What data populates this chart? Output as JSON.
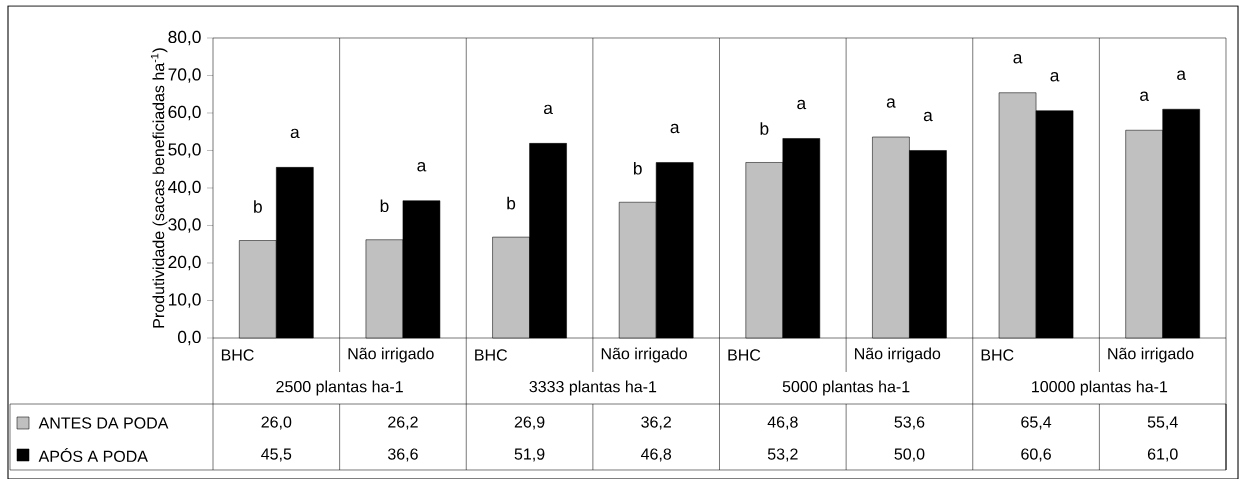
{
  "chart_data": {
    "type": "bar",
    "ylabel": "Produtividade (sacas beneficiadas ha$^{-1}$)",
    "categories": [
      "BHC",
      "Não irrigado",
      "BHC",
      "Não irrigado",
      "BHC",
      "Não irrigado",
      "BHC",
      "Não irrigado"
    ],
    "series": [
      {
        "name": "ANTES DA PODA",
        "color": "#c0c0c0",
        "values": [
          26.0,
          26.2,
          26.9,
          36.2,
          46.8,
          53.6,
          65.4,
          55.4
        ],
        "value_labels": [
          "26,0",
          "26,2",
          "26,9",
          "36,2",
          "46,8",
          "53,6",
          "65,4",
          "55,4"
        ]
      },
      {
        "name": "APÓS A PODA",
        "color": "#000000",
        "values": [
          45.5,
          36.6,
          51.9,
          46.8,
          53.2,
          50.0,
          60.6,
          61.0
        ],
        "value_labels": [
          "45,5",
          "36,6",
          "51,9",
          "46,8",
          "53,2",
          "50,0",
          "60,6",
          "61,0"
        ]
      }
    ],
    "annotations": [
      "2500 plantas ha-1",
      "3333 plantas ha-1",
      "5000 plantas ha-1",
      "10000 plantas ha-1",
      {
        "text": "b",
        "y": 26.0
      },
      {
        "text": "a",
        "y": 45.5
      },
      {
        "text": "b",
        "y": 26.2
      },
      {
        "text": "a",
        "y": 36.6
      },
      {
        "text": "b",
        "y": 26.9
      },
      {
        "text": "a",
        "y": 51.9
      },
      {
        "text": "b",
        "y": 36.2
      },
      {
        "text": "a",
        "y": 46.8
      },
      {
        "text": "b",
        "y": 46.8
      },
      {
        "text": "a",
        "y": 53.2
      },
      {
        "text": "a",
        "y": 53.6
      },
      {
        "text": "a",
        "y": 50.0
      },
      {
        "text": "a",
        "y": 65.4
      },
      {
        "text": "a",
        "y": 60.6
      },
      {
        "text": "a",
        "y": 55.4
      },
      {
        "text": "a",
        "y": 61.0
      }
    ],
    "ylim": [
      0,
      80
    ],
    "yticks": [
      {
        "value": 0,
        "label": "0,0"
      },
      {
        "value": 10,
        "label": "10,0"
      },
      {
        "value": 20,
        "label": "20,0"
      },
      {
        "value": 30,
        "label": "30,0"
      },
      {
        "value": 40,
        "label": "40,0"
      },
      {
        "value": 50,
        "label": "50,0"
      },
      {
        "value": 60,
        "label": "60,0"
      },
      {
        "value": 70,
        "label": "70,0"
      },
      {
        "value": 80,
        "label": "80,0"
      }
    ],
    "legend": "bottom left",
    "grid": false
  }
}
